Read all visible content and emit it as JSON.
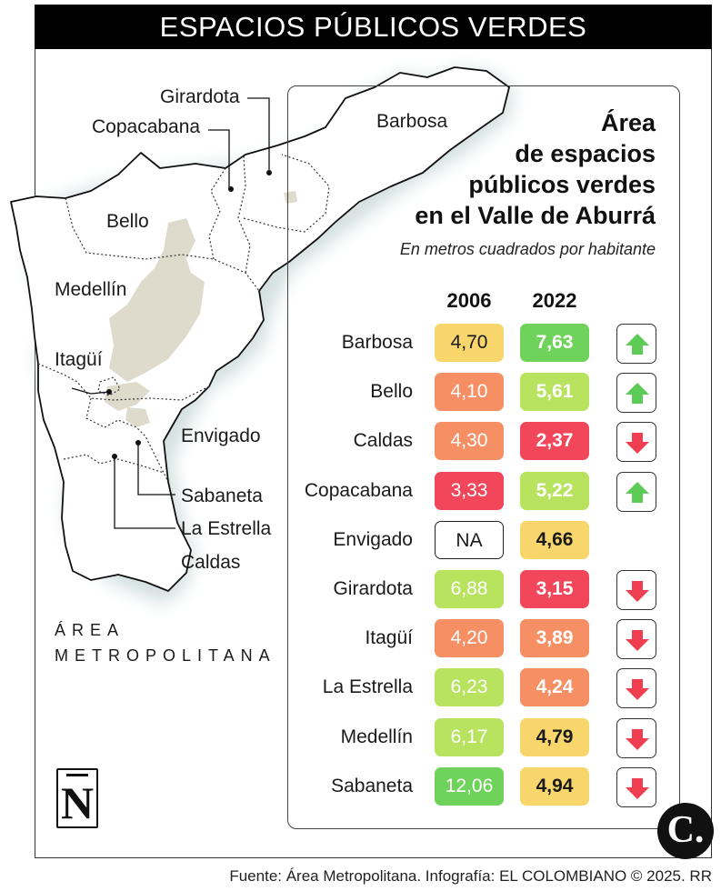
{
  "header": {
    "banner_title": "ESPACIOS PÚBLICOS VERDES"
  },
  "map": {
    "labels": {
      "girardota": "Girardota",
      "copacabana": "Copacabana",
      "barbosa": "Barbosa",
      "bello": "Bello",
      "medellin": "Medellín",
      "itagui": "Itagüí",
      "envigado": "Envigado",
      "sabaneta": "Sabaneta",
      "la_estrella": "La Estrella",
      "caldas": "Caldas"
    },
    "region_line1": "ÁREA",
    "region_line2": "METROPOLITANA"
  },
  "chart_data": {
    "type": "table",
    "title_lines": [
      "Área",
      "de espacios",
      "públicos verdes",
      "en el Valle de Aburrá"
    ],
    "subtitle": "En metros cuadrados por habitante",
    "columns": [
      "2006",
      "2022"
    ],
    "rows": [
      {
        "name": "Barbosa",
        "v2006": "4,70",
        "v2022": "7,63",
        "c2006": "#f8d66c",
        "c2022": "#6fd25a",
        "trend": "up"
      },
      {
        "name": "Bello",
        "v2006": "4,10",
        "v2022": "5,61",
        "c2006": "#f78f65",
        "c2022": "#b7e35f",
        "trend": "up"
      },
      {
        "name": "Caldas",
        "v2006": "4,30",
        "v2022": "2,37",
        "c2006": "#f78f65",
        "c2022": "#f2475a",
        "trend": "down"
      },
      {
        "name": "Copacabana",
        "v2006": "3,33",
        "v2022": "5,22",
        "c2006": "#f2475a",
        "c2022": "#b7e35f",
        "trend": "up"
      },
      {
        "name": "Envigado",
        "v2006": "NA",
        "v2022": "4,66",
        "c2006": "#ffffff",
        "c2022": "#f8d66c",
        "trend": ""
      },
      {
        "name": "Girardota",
        "v2006": "6,88",
        "v2022": "3,15",
        "c2006": "#b7e35f",
        "c2022": "#f2475a",
        "trend": "down"
      },
      {
        "name": "Itagüí",
        "v2006": "4,20",
        "v2022": "3,89",
        "c2006": "#f78f65",
        "c2022": "#f78f65",
        "trend": "down"
      },
      {
        "name": "La Estrella",
        "v2006": "6,23",
        "v2022": "4,24",
        "c2006": "#b7e35f",
        "c2022": "#f78f65",
        "trend": "down"
      },
      {
        "name": "Medellín",
        "v2006": "6,17",
        "v2022": "4,79",
        "c2006": "#b7e35f",
        "c2022": "#f8d66c",
        "trend": "down"
      },
      {
        "name": "Sabaneta",
        "v2006": "12,06",
        "v2022": "4,94",
        "c2006": "#6fd25a",
        "c2022": "#f8d66c",
        "trend": "down"
      }
    ],
    "colors": {
      "up_arrow": "#5ccc57",
      "down_arrow": "#ef3e4f"
    }
  },
  "footer": {
    "source": "Fuente: Área Metropolitana. Infografía: EL COLOMBIANO © 2025. RR",
    "logo_n": "N",
    "logo_c": "C."
  }
}
